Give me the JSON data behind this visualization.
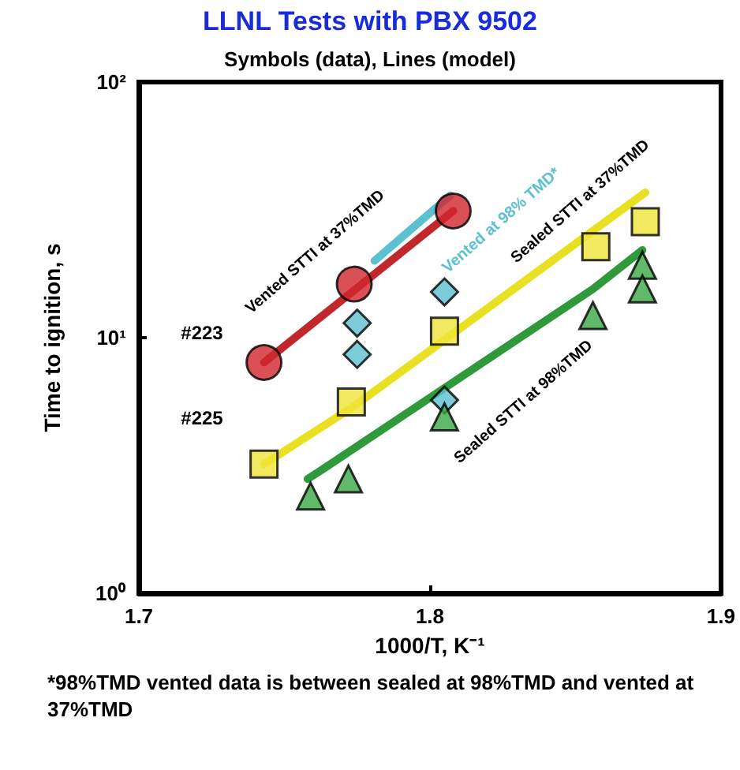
{
  "chart_data": {
    "type": "scatter",
    "title": "LLNL Tests with PBX 9502",
    "subtitle": "Symbols (data), Lines (model)",
    "xlabel": "1000/T, K⁻¹",
    "ylabel": "Time to ignition, s",
    "xlim": [
      1.7,
      1.9
    ],
    "xticks": [
      1.7,
      1.8,
      1.9
    ],
    "ylim": [
      1,
      100
    ],
    "yticks": [
      {
        "value": 1,
        "label": "10⁰"
      },
      {
        "value": 10,
        "label": "10¹"
      },
      {
        "value": 100,
        "label": "10²"
      }
    ],
    "log": "y",
    "grid": false,
    "series": [
      {
        "type": "line",
        "marker": "none",
        "color": "#c0282d",
        "x": [
          1.743,
          1.808
        ],
        "values": [
          8.0,
          31.3
        ]
      },
      {
        "type": "line",
        "marker": "none",
        "color": "#5bc0cf",
        "x": [
          1.781,
          1.807
        ],
        "values": [
          20,
          36
        ]
      },
      {
        "type": "line",
        "marker": "none",
        "color": "#e8e020",
        "x": [
          1.743,
          1.774,
          1.874
        ],
        "values": [
          3.2,
          5.4,
          37
        ]
      },
      {
        "type": "line",
        "marker": "none",
        "color": "#2e9a3a",
        "x": [
          1.758,
          1.764,
          1.856,
          1.873
        ],
        "values": [
          2.8,
          3.1,
          15.5,
          22
        ]
      },
      {
        "type": "scatter",
        "marker": "circle",
        "color": "#d0262c",
        "x": [
          1.743,
          1.774,
          1.808
        ],
        "values": [
          8.0,
          16.2,
          31.3
        ]
      },
      {
        "type": "scatter",
        "marker": "diamond",
        "color": "#5bc0cf",
        "x": [
          1.775,
          1.775,
          1.805,
          1.805
        ],
        "values": [
          11.4,
          8.6,
          15.1,
          5.7
        ]
      },
      {
        "type": "scatter",
        "marker": "square",
        "color": "#f0e43a",
        "x": [
          1.743,
          1.773,
          1.805,
          1.857,
          1.874
        ],
        "values": [
          3.2,
          5.6,
          10.6,
          22.7,
          28.4
        ]
      },
      {
        "type": "scatter",
        "marker": "triangle",
        "color": "#3aa843",
        "x": [
          1.759,
          1.772,
          1.805,
          1.856,
          1.873,
          1.873
        ],
        "values": [
          2.4,
          2.8,
          4.9,
          12.2,
          19.2,
          15.5
        ]
      }
    ],
    "annotations": [
      "Vented STTI at 37%TMD",
      "Vented at 98% TMD*",
      "Sealed STTI at 37%TMD",
      "Sealed STTI at 98%TMD",
      "#223",
      "#225",
      "*98%TMD vented data is between sealed at 98%TMD and vented at 37%TMD"
    ]
  }
}
